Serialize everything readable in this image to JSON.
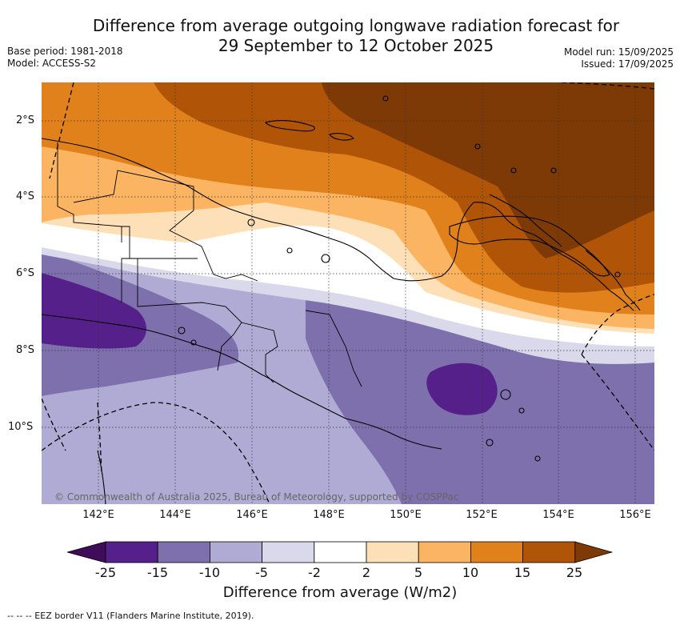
{
  "title_line1": "Difference from average outgoing longwave radiation forecast for",
  "title_line2": "29 September to 12 October 2025",
  "base_period": "Base period: 1981-2018",
  "model": "Model: ACCESS-S2",
  "model_run": "Model run: 15/09/2025",
  "issued": "Issued: 17/09/2025",
  "lat_labels": [
    "2°S",
    "4°S",
    "6°S",
    "8°S",
    "10°S"
  ],
  "lon_labels": [
    "142°E",
    "144°E",
    "146°E",
    "148°E",
    "150°E",
    "152°E",
    "154°E",
    "156°E"
  ],
  "copyright": "© Commonwealth of Australia 2025, Bureau of Meteorology, supported by COSPPac",
  "colorbar": {
    "ticks": [
      "-25",
      "-15",
      "-10",
      "-5",
      "-2",
      "2",
      "5",
      "10",
      "15",
      "25"
    ],
    "colors": [
      "#3f0c5a",
      "#56208a",
      "#7e70ad",
      "#b0abd4",
      "#dad9ec",
      "#ffffff",
      "#fde0b7",
      "#fbb562",
      "#e1811c",
      "#b05508",
      "#7d3a07"
    ],
    "label": "Difference from average (W/m2)"
  },
  "eez_legend": "--  --  -- EEZ border V11 (Flanders Marine Institute, 2019)."
}
